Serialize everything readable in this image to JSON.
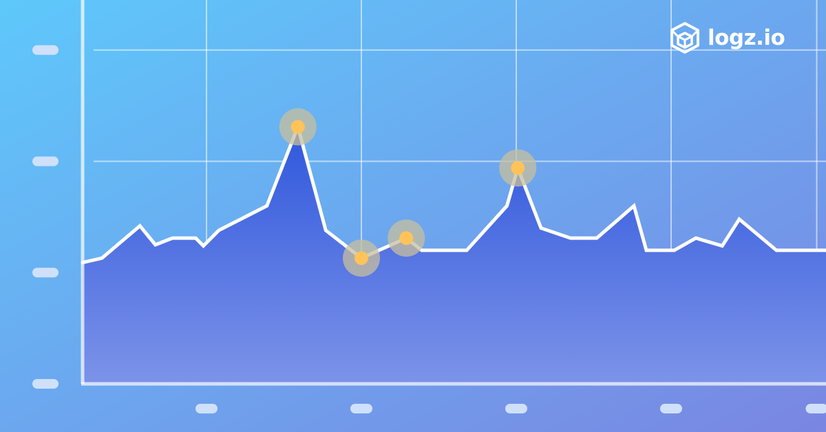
{
  "brand": {
    "name": "logz.io",
    "icon": "cube-icon",
    "text_color": "#ffffff"
  },
  "colors": {
    "background_top": "#5ec8fb",
    "background_bottom": "#7a86e2",
    "line": "#ffffff",
    "area_top": "#2f57dd",
    "area_bottom": "#7c93e8",
    "marker": "#ffc35a",
    "marker_halo": "#c7bf9e",
    "tick_placeholder": "#cfe0fb"
  },
  "chart_data": {
    "type": "area",
    "title": "",
    "xlabel": "",
    "ylabel": "",
    "xlim": [
      0,
      48
    ],
    "ylim": [
      0,
      3.45
    ],
    "grid": true,
    "tick_labels_hidden": true,
    "x_tick_positions": [
      8,
      18,
      28,
      38,
      47.4
    ],
    "y_tick_positions": [
      0,
      1,
      2,
      3
    ],
    "series": [
      {
        "x": [
          0,
          1.25,
          3.7,
          4.7,
          5.8,
          7.3,
          7.8,
          8.8,
          11.9,
          13.9,
          15.7,
          18,
          20.9,
          21.9,
          24.8,
          27.4,
          28.1,
          29.6,
          31.5,
          33.2,
          35.6,
          36.4,
          38.2,
          39.6,
          41.3,
          42.4,
          44.8,
          46.6,
          48
        ],
        "y": [
          1.09,
          1.13,
          1.42,
          1.25,
          1.31,
          1.31,
          1.24,
          1.38,
          1.6,
          2.31,
          1.38,
          1.13,
          1.31,
          1.2,
          1.2,
          1.6,
          1.94,
          1.4,
          1.31,
          1.31,
          1.6,
          1.2,
          1.2,
          1.31,
          1.24,
          1.48,
          1.2,
          1.2,
          1.2
        ]
      }
    ],
    "highlighted_points": [
      {
        "x": 13.9,
        "y": 2.31
      },
      {
        "x": 18,
        "y": 1.13
      },
      {
        "x": 20.9,
        "y": 1.31
      },
      {
        "x": 28.1,
        "y": 1.94
      }
    ]
  }
}
